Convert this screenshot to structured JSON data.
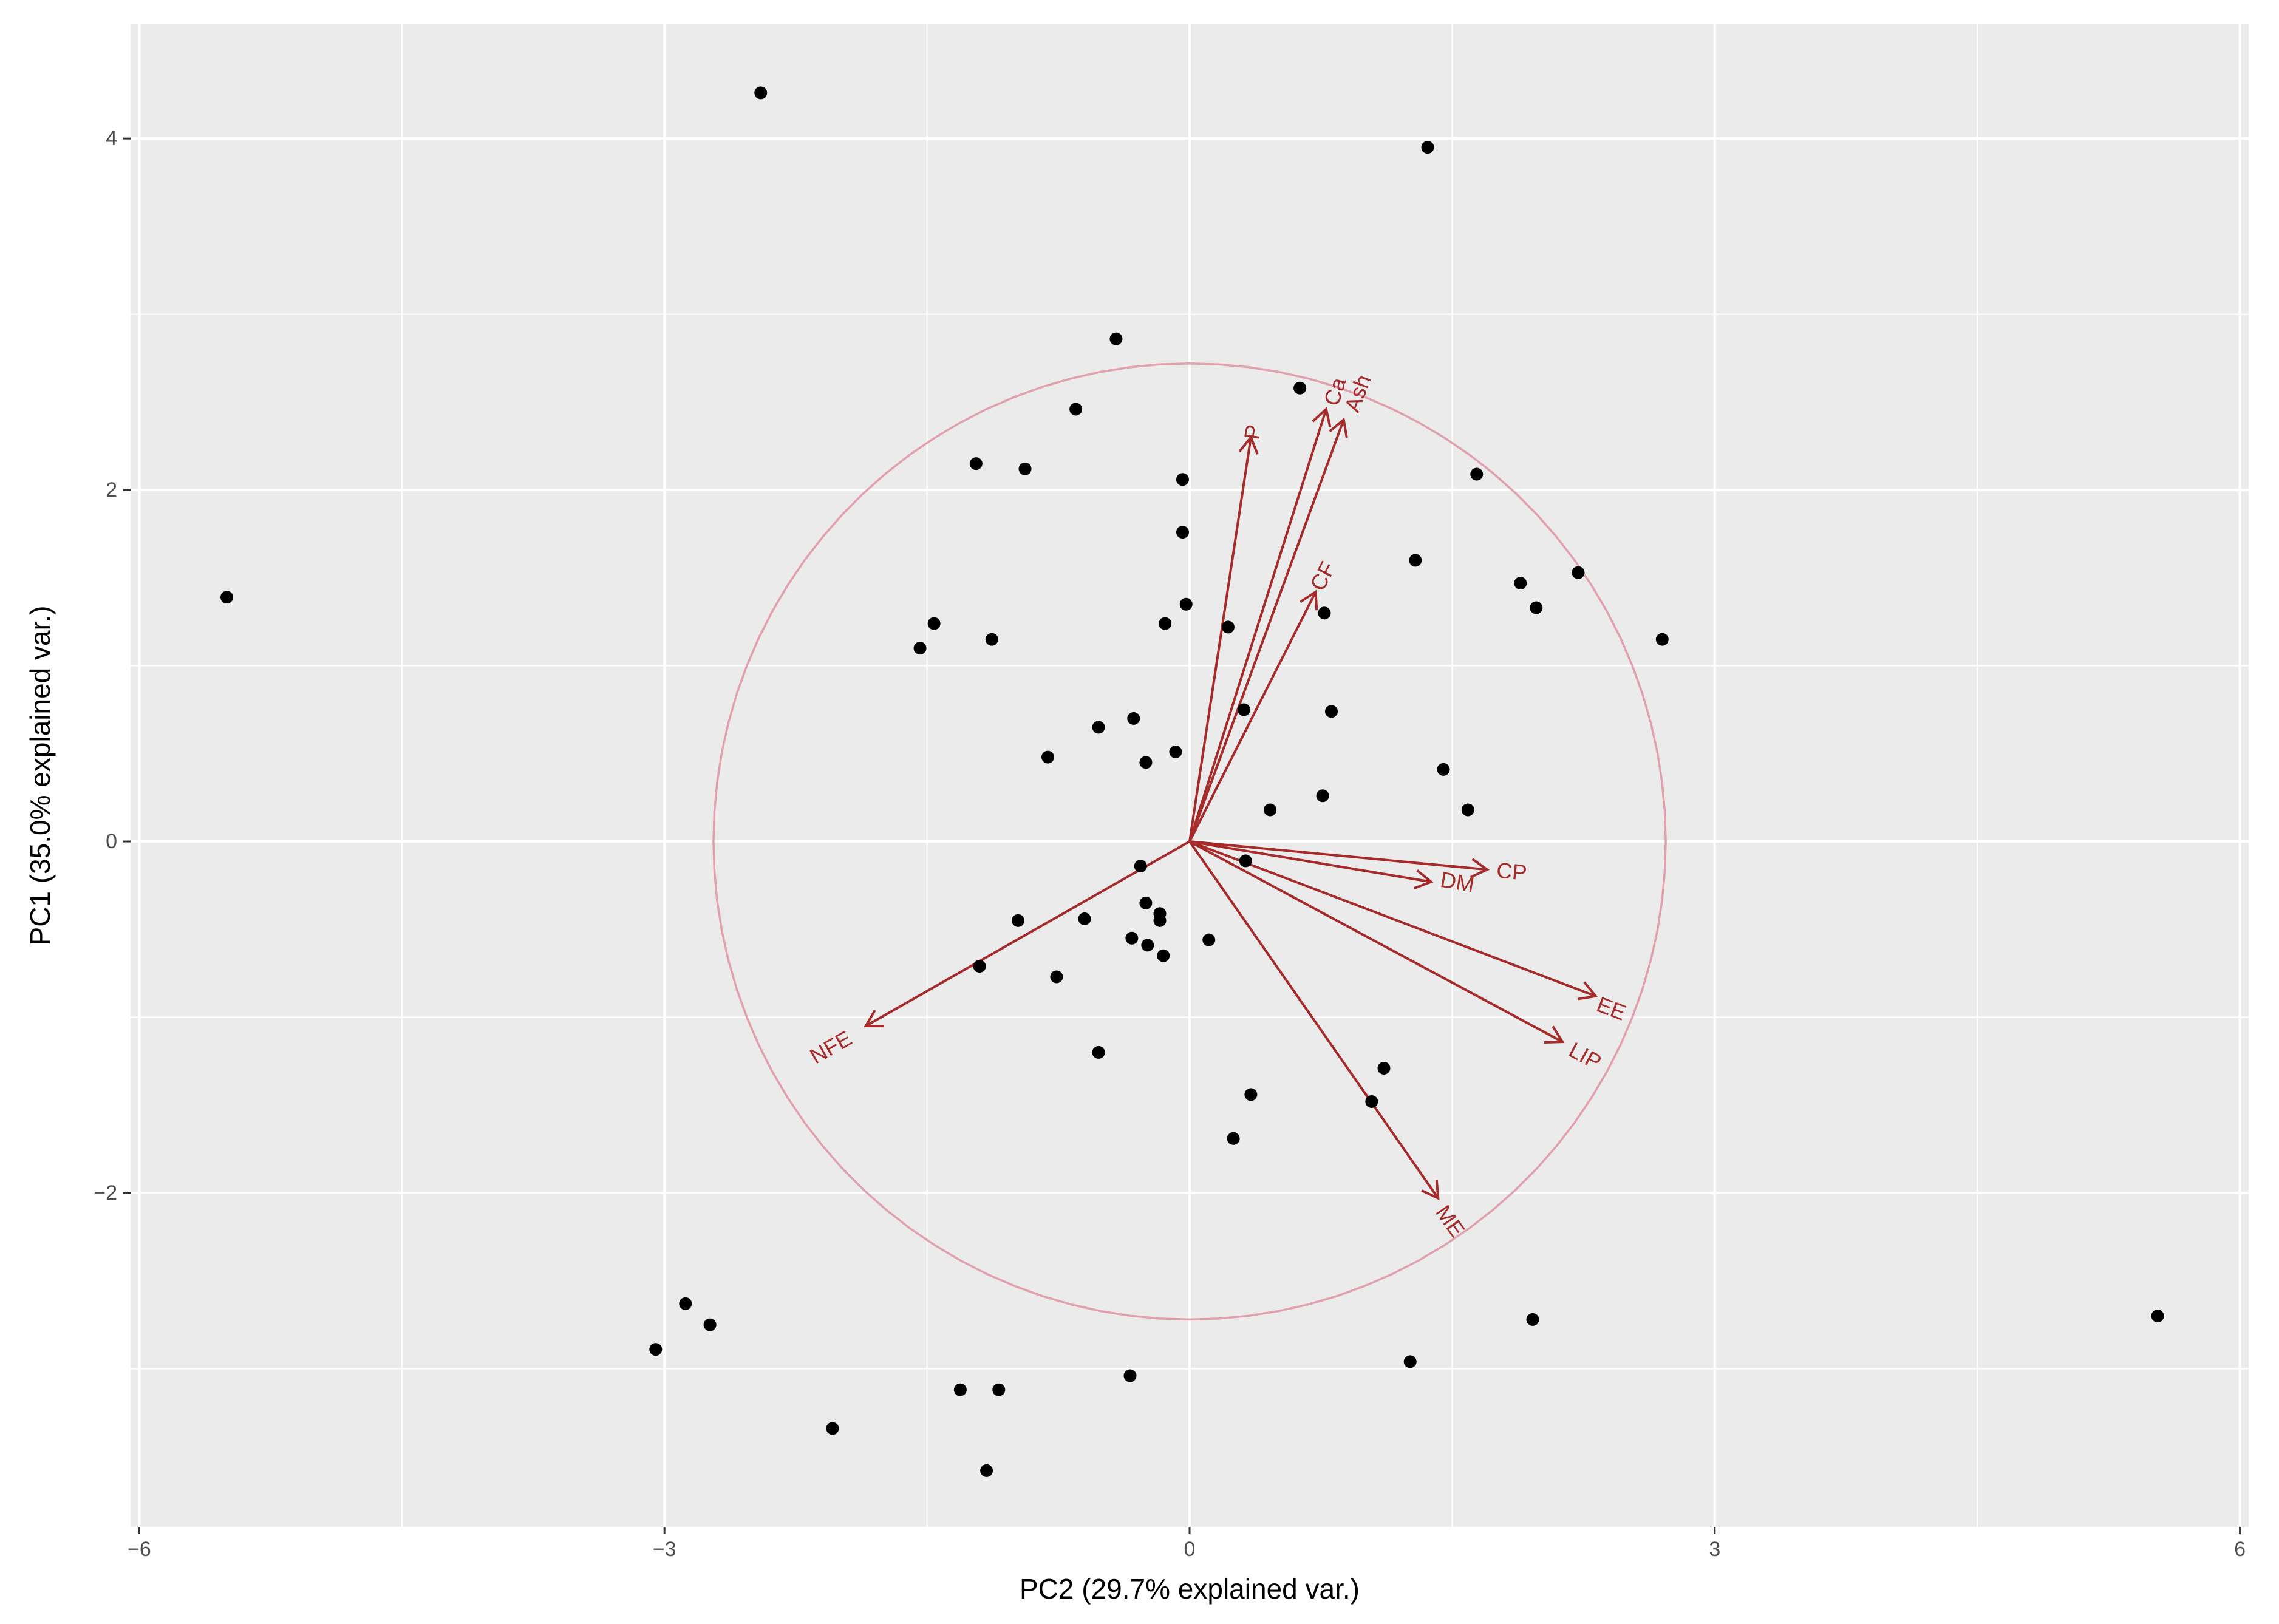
{
  "chart_data": {
    "type": "scatter",
    "subtype": "pca-biplot",
    "xlabel": "PC2 (29.7% explained var.)",
    "ylabel": "PC1 (35.0% explained var.)",
    "xlim": [
      -6.05,
      6.05
    ],
    "ylim": [
      -3.9,
      4.65
    ],
    "x_ticks": [
      -6,
      -3,
      0,
      3,
      6
    ],
    "y_ticks": [
      -2,
      0,
      2,
      4
    ],
    "x_tick_labels": [
      "−6",
      "−3",
      "0",
      "3",
      "6"
    ],
    "y_tick_labels": [
      "−2",
      "0",
      "2",
      "4"
    ],
    "grid": true,
    "panel_background": "#ebebeb",
    "point_color": "#000000",
    "vector_color": "#a52a2a",
    "circle_color": "#e0a0ad",
    "circle_radius": 2.72,
    "points": [
      {
        "x": -2.45,
        "y": 4.26
      },
      {
        "x": 1.36,
        "y": 3.95
      },
      {
        "x": -0.42,
        "y": 2.86
      },
      {
        "x": 0.63,
        "y": 2.58
      },
      {
        "x": -0.65,
        "y": 2.46
      },
      {
        "x": -1.22,
        "y": 2.15
      },
      {
        "x": -0.94,
        "y": 2.12
      },
      {
        "x": -0.04,
        "y": 2.06
      },
      {
        "x": 1.64,
        "y": 2.09
      },
      {
        "x": -0.04,
        "y": 1.76
      },
      {
        "x": 1.29,
        "y": 1.6
      },
      {
        "x": 2.22,
        "y": 1.53
      },
      {
        "x": 1.89,
        "y": 1.47
      },
      {
        "x": -5.5,
        "y": 1.39
      },
      {
        "x": 1.98,
        "y": 1.33
      },
      {
        "x": -0.02,
        "y": 1.35
      },
      {
        "x": 0.77,
        "y": 1.3
      },
      {
        "x": -1.46,
        "y": 1.24
      },
      {
        "x": -0.14,
        "y": 1.24
      },
      {
        "x": 0.22,
        "y": 1.22
      },
      {
        "x": 2.7,
        "y": 1.15
      },
      {
        "x": -1.13,
        "y": 1.15
      },
      {
        "x": -1.54,
        "y": 1.1
      },
      {
        "x": 0.31,
        "y": 0.75
      },
      {
        "x": 0.81,
        "y": 0.74
      },
      {
        "x": -0.32,
        "y": 0.7
      },
      {
        "x": -0.52,
        "y": 0.65
      },
      {
        "x": -0.08,
        "y": 0.51
      },
      {
        "x": -0.81,
        "y": 0.48
      },
      {
        "x": -0.25,
        "y": 0.45
      },
      {
        "x": 1.45,
        "y": 0.41
      },
      {
        "x": 0.76,
        "y": 0.26
      },
      {
        "x": 0.46,
        "y": 0.18
      },
      {
        "x": 1.59,
        "y": 0.18
      },
      {
        "x": 0.32,
        "y": -0.11
      },
      {
        "x": -0.28,
        "y": -0.14
      },
      {
        "x": -0.25,
        "y": -0.35
      },
      {
        "x": -0.17,
        "y": -0.41
      },
      {
        "x": -0.17,
        "y": -0.45
      },
      {
        "x": -0.6,
        "y": -0.44
      },
      {
        "x": -0.98,
        "y": -0.45
      },
      {
        "x": 0.11,
        "y": -0.56
      },
      {
        "x": -0.33,
        "y": -0.55
      },
      {
        "x": -0.24,
        "y": -0.59
      },
      {
        "x": -0.15,
        "y": -0.65
      },
      {
        "x": -1.2,
        "y": -0.71
      },
      {
        "x": -0.76,
        "y": -0.77
      },
      {
        "x": -0.52,
        "y": -1.2
      },
      {
        "x": 1.11,
        "y": -1.29
      },
      {
        "x": 0.35,
        "y": -1.44
      },
      {
        "x": 1.04,
        "y": -1.48
      },
      {
        "x": 0.25,
        "y": -1.69
      },
      {
        "x": -2.88,
        "y": -2.63
      },
      {
        "x": -2.74,
        "y": -2.75
      },
      {
        "x": 1.96,
        "y": -2.72
      },
      {
        "x": 5.53,
        "y": -2.7
      },
      {
        "x": -3.05,
        "y": -2.89
      },
      {
        "x": 1.26,
        "y": -2.96
      },
      {
        "x": -0.34,
        "y": -3.04
      },
      {
        "x": -1.31,
        "y": -3.12
      },
      {
        "x": -1.09,
        "y": -3.12
      },
      {
        "x": -2.04,
        "y": -3.34
      },
      {
        "x": -1.16,
        "y": -3.58
      }
    ],
    "vectors": [
      {
        "label": "P",
        "x": 0.35,
        "y": 2.3,
        "label_x": 0.36,
        "label_y": 2.33
      },
      {
        "label": "Ca",
        "x": 0.78,
        "y": 2.46,
        "label_x": 0.83,
        "label_y": 2.56
      },
      {
        "label": "Ash",
        "x": 0.88,
        "y": 2.4,
        "label_x": 0.96,
        "label_y": 2.55
      },
      {
        "label": "CF",
        "x": 0.72,
        "y": 1.42,
        "label_x": 0.76,
        "label_y": 1.51
      },
      {
        "label": "CP",
        "x": 1.7,
        "y": -0.16,
        "label_x": 1.84,
        "label_y": -0.17
      },
      {
        "label": "DM",
        "x": 1.38,
        "y": -0.23,
        "label_x": 1.53,
        "label_y": -0.23
      },
      {
        "label": "EE",
        "x": 2.32,
        "y": -0.88,
        "label_x": 2.41,
        "label_y": -0.95
      },
      {
        "label": "LIP",
        "x": 2.13,
        "y": -1.14,
        "label_x": 2.26,
        "label_y": -1.22
      },
      {
        "label": "ME",
        "x": 1.42,
        "y": -2.03,
        "label_x": 1.49,
        "label_y": -2.16
      },
      {
        "label": "NFE",
        "x": -1.85,
        "y": -1.05,
        "label_x": -2.05,
        "label_y": -1.17
      }
    ]
  }
}
